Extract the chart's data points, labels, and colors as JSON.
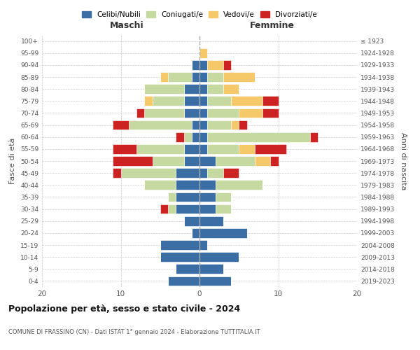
{
  "age_groups": [
    "0-4",
    "5-9",
    "10-14",
    "15-19",
    "20-24",
    "25-29",
    "30-34",
    "35-39",
    "40-44",
    "45-49",
    "50-54",
    "55-59",
    "60-64",
    "65-69",
    "70-74",
    "75-79",
    "80-84",
    "85-89",
    "90-94",
    "95-99",
    "100+"
  ],
  "birth_years": [
    "2019-2023",
    "2014-2018",
    "2009-2013",
    "2004-2008",
    "1999-2003",
    "1994-1998",
    "1989-1993",
    "1984-1988",
    "1979-1983",
    "1974-1978",
    "1969-1973",
    "1964-1968",
    "1959-1963",
    "1954-1958",
    "1949-1953",
    "1944-1948",
    "1939-1943",
    "1934-1938",
    "1929-1933",
    "1924-1928",
    "≤ 1923"
  ],
  "maschi": {
    "celibi": [
      4,
      3,
      5,
      5,
      1,
      2,
      3,
      3,
      3,
      3,
      2,
      2,
      1,
      1,
      2,
      2,
      2,
      1,
      1,
      0,
      0
    ],
    "coniugati": [
      0,
      0,
      0,
      0,
      0,
      0,
      1,
      1,
      4,
      7,
      4,
      6,
      1,
      8,
      5,
      4,
      5,
      3,
      0,
      0,
      0
    ],
    "vedovi": [
      0,
      0,
      0,
      0,
      0,
      0,
      0,
      0,
      0,
      0,
      0,
      0,
      0,
      0,
      0,
      1,
      0,
      1,
      0,
      0,
      0
    ],
    "divorziati": [
      0,
      0,
      0,
      0,
      0,
      0,
      1,
      0,
      0,
      1,
      5,
      3,
      1,
      2,
      1,
      0,
      0,
      0,
      0,
      0,
      0
    ]
  },
  "femmine": {
    "nubili": [
      4,
      3,
      5,
      1,
      6,
      3,
      2,
      2,
      2,
      1,
      2,
      1,
      1,
      1,
      1,
      1,
      1,
      1,
      1,
      0,
      0
    ],
    "coniugate": [
      0,
      0,
      0,
      0,
      0,
      0,
      2,
      2,
      6,
      2,
      5,
      4,
      13,
      3,
      4,
      3,
      2,
      2,
      0,
      0,
      0
    ],
    "vedove": [
      0,
      0,
      0,
      0,
      0,
      0,
      0,
      0,
      0,
      0,
      2,
      2,
      0,
      1,
      3,
      4,
      2,
      4,
      2,
      1,
      0
    ],
    "divorziate": [
      0,
      0,
      0,
      0,
      0,
      0,
      0,
      0,
      0,
      2,
      1,
      4,
      1,
      1,
      2,
      2,
      0,
      0,
      1,
      0,
      0
    ]
  },
  "colors": {
    "celibi_nubili": "#3a6ea5",
    "coniugati": "#c5d9a0",
    "vedovi": "#f5c96a",
    "divorziati": "#cc2222"
  },
  "xlim": 20,
  "title": "Popolazione per età, sesso e stato civile - 2024",
  "subtitle": "COMUNE DI FRASSINO (CN) - Dati ISTAT 1° gennaio 2024 - Elaborazione TUTTITALIA.IT",
  "ylabel_left": "Fasce di età",
  "ylabel_right": "Anni di nascita",
  "xlabel_left": "Maschi",
  "xlabel_right": "Femmine",
  "legend_labels": [
    "Celibi/Nubili",
    "Coniugati/e",
    "Vedovi/e",
    "Divorziati/e"
  ]
}
